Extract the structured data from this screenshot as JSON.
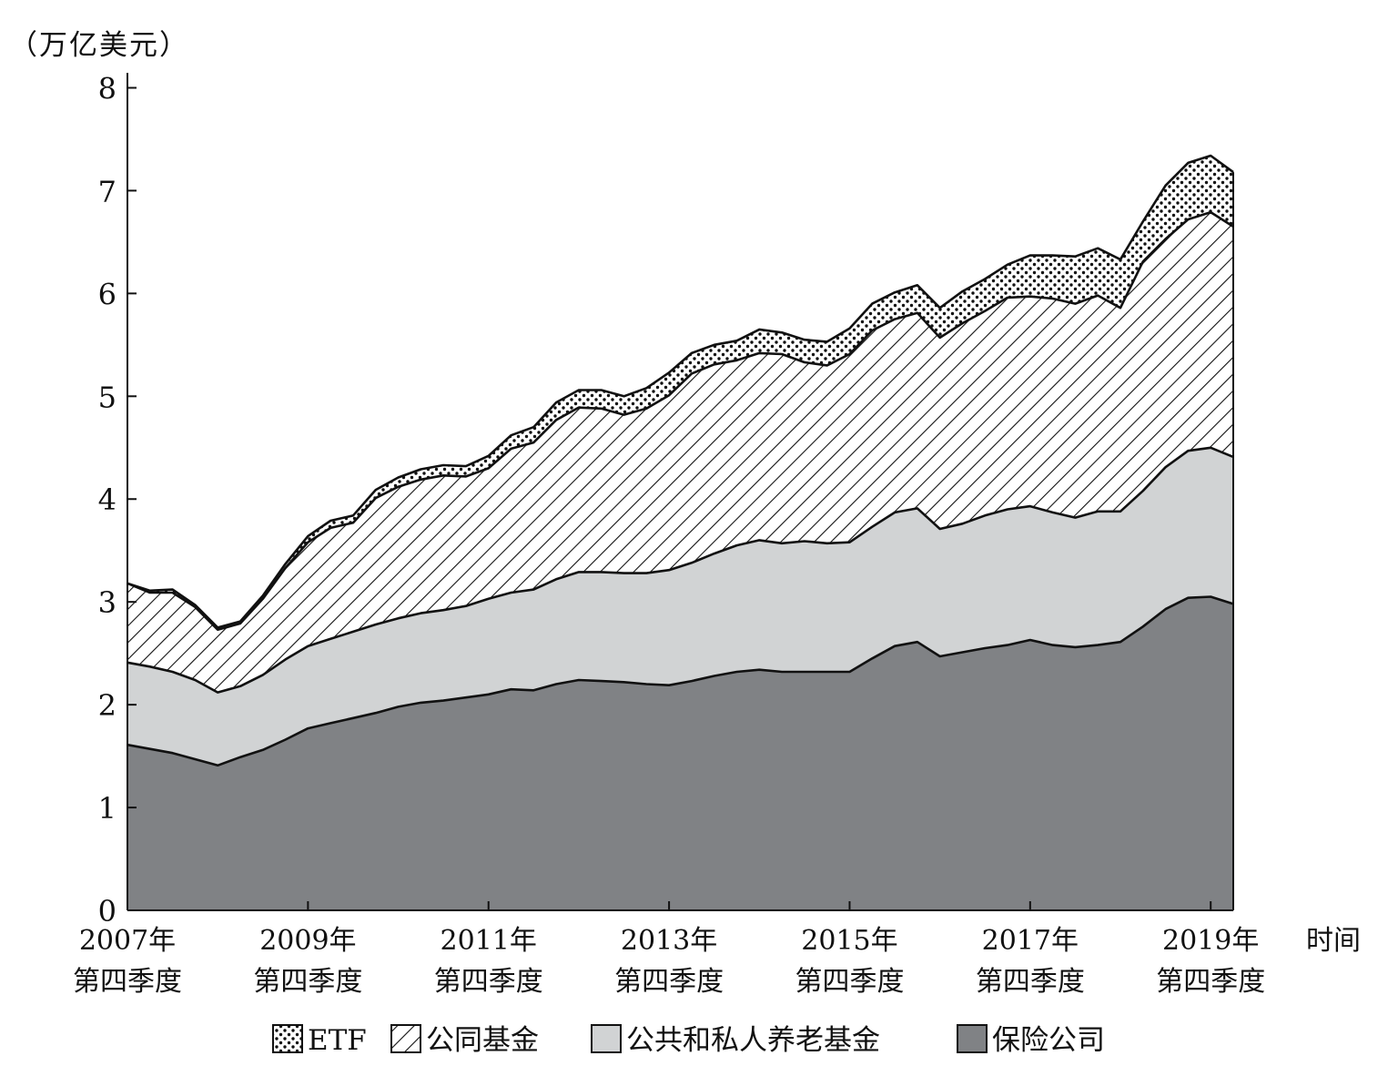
{
  "chart_data": {
    "type": "area",
    "stacked": true,
    "unit_label": "（万亿美元）",
    "x_axis_title": "时间",
    "ylim": [
      0,
      8.5
    ],
    "yticks": [
      0,
      1,
      2,
      3,
      4,
      5,
      6,
      7,
      8
    ],
    "x": [
      "2007Q4",
      "2008Q1",
      "2008Q2",
      "2008Q3",
      "2008Q4",
      "2009Q1",
      "2009Q2",
      "2009Q3",
      "2009Q4",
      "2010Q1",
      "2010Q2",
      "2010Q3",
      "2010Q4",
      "2011Q1",
      "2011Q2",
      "2011Q3",
      "2011Q4",
      "2012Q1",
      "2012Q2",
      "2012Q3",
      "2012Q4",
      "2013Q1",
      "2013Q2",
      "2013Q3",
      "2013Q4",
      "2014Q1",
      "2014Q2",
      "2014Q3",
      "2014Q4",
      "2015Q1",
      "2015Q2",
      "2015Q3",
      "2015Q4",
      "2016Q1",
      "2016Q2",
      "2016Q3",
      "2016Q4",
      "2017Q1",
      "2017Q2",
      "2017Q3",
      "2017Q4",
      "2018Q1",
      "2018Q2",
      "2018Q3",
      "2018Q4",
      "2019Q1",
      "2019Q2",
      "2019Q3",
      "2019Q4",
      "2020Q1"
    ],
    "x_tick_labels": [
      {
        "x": "2007Q4",
        "line1": "2007年",
        "line2": "第四季度"
      },
      {
        "x": "2009Q4",
        "line1": "2009年",
        "line2": "第四季度"
      },
      {
        "x": "2011Q4",
        "line1": "2011年",
        "line2": "第四季度"
      },
      {
        "x": "2013Q4",
        "line1": "2013年",
        "line2": "第四季度"
      },
      {
        "x": "2015Q4",
        "line1": "2015年",
        "line2": "第四季度"
      },
      {
        "x": "2017Q4",
        "line1": "2017年",
        "line2": "第四季度"
      },
      {
        "x": "2019Q4",
        "line1": "2019年",
        "line2": "第四季度"
      }
    ],
    "legend_position": "bottom",
    "series": [
      {
        "name": "保险公司",
        "pattern": "solid-dark",
        "color": "#808285",
        "values": [
          1.61,
          1.57,
          1.53,
          1.47,
          1.41,
          1.49,
          1.56,
          1.66,
          1.77,
          1.82,
          1.87,
          1.92,
          1.98,
          2.02,
          2.04,
          2.07,
          2.1,
          2.15,
          2.14,
          2.2,
          2.24,
          2.23,
          2.22,
          2.2,
          2.19,
          2.23,
          2.28,
          2.32,
          2.34,
          2.32,
          2.32,
          2.32,
          2.32,
          2.45,
          2.57,
          2.61,
          2.47,
          2.51,
          2.55,
          2.58,
          2.63,
          2.58,
          2.56,
          2.58,
          2.61,
          2.76,
          2.93,
          3.04,
          3.05,
          2.98
        ]
      },
      {
        "name": "公共和私人养老基金",
        "pattern": "solid-light",
        "color": "#d1d3d4",
        "values": [
          0.8,
          0.8,
          0.79,
          0.77,
          0.71,
          0.69,
          0.73,
          0.78,
          0.8,
          0.82,
          0.84,
          0.86,
          0.86,
          0.87,
          0.88,
          0.89,
          0.93,
          0.94,
          0.98,
          1.02,
          1.05,
          1.06,
          1.06,
          1.08,
          1.12,
          1.15,
          1.19,
          1.23,
          1.26,
          1.25,
          1.27,
          1.25,
          1.26,
          1.28,
          1.3,
          1.3,
          1.24,
          1.25,
          1.29,
          1.32,
          1.3,
          1.29,
          1.26,
          1.3,
          1.27,
          1.32,
          1.38,
          1.43,
          1.45,
          1.43
        ]
      },
      {
        "name": "公同基金",
        "pattern": "hatch",
        "color": "#ffffff",
        "values": [
          0.77,
          0.72,
          0.77,
          0.71,
          0.61,
          0.61,
          0.74,
          0.89,
          1.01,
          1.08,
          1.06,
          1.23,
          1.28,
          1.3,
          1.31,
          1.26,
          1.27,
          1.4,
          1.43,
          1.55,
          1.6,
          1.59,
          1.54,
          1.6,
          1.7,
          1.84,
          1.84,
          1.8,
          1.82,
          1.84,
          1.74,
          1.73,
          1.83,
          1.91,
          1.88,
          1.9,
          1.86,
          1.95,
          1.99,
          2.06,
          2.04,
          2.08,
          2.08,
          2.1,
          1.98,
          2.23,
          2.22,
          2.25,
          2.29,
          2.24
        ]
      },
      {
        "name": "ETF",
        "pattern": "dots",
        "color": "#ffffff",
        "values": [
          0.0,
          0.02,
          0.03,
          0.02,
          0.02,
          0.02,
          0.03,
          0.04,
          0.06,
          0.07,
          0.07,
          0.08,
          0.09,
          0.1,
          0.1,
          0.1,
          0.12,
          0.13,
          0.15,
          0.17,
          0.17,
          0.18,
          0.18,
          0.2,
          0.22,
          0.2,
          0.19,
          0.19,
          0.23,
          0.21,
          0.22,
          0.23,
          0.25,
          0.26,
          0.26,
          0.27,
          0.29,
          0.31,
          0.31,
          0.32,
          0.4,
          0.42,
          0.46,
          0.46,
          0.47,
          0.39,
          0.52,
          0.55,
          0.55,
          0.53
        ]
      }
    ]
  }
}
